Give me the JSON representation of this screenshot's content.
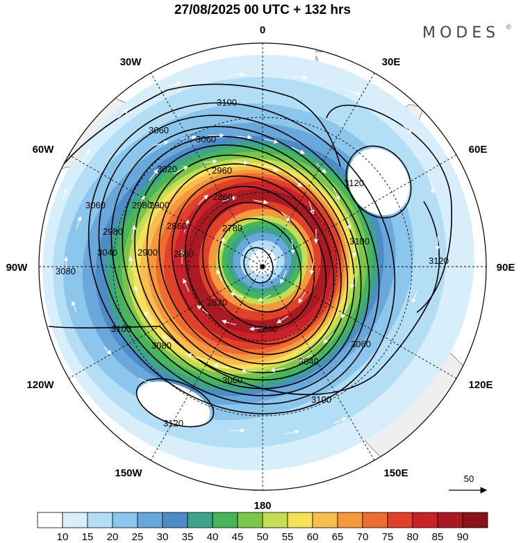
{
  "title": "27/08/2025  00 UTC  + 132 hrs",
  "brand": "MODES",
  "brand_mark": "©",
  "longitude_labels": {
    "lon_0": "0",
    "lon_30e": "30E",
    "lon_60e": "60E",
    "lon_90e": "90E",
    "lon_120e": "120E",
    "lon_150e": "150E",
    "lon_180": "180",
    "lon_150w": "150W",
    "lon_120w": "120W",
    "lon_90w": "90W",
    "lon_60w": "60W",
    "lon_30w": "30W"
  },
  "contour_labels": {
    "c1": "3100",
    "c2": "3080",
    "c3": "3060",
    "c4": "3060",
    "c5": "3020",
    "c6": "2980",
    "c7": "2900",
    "c8": "2860",
    "c9": "3120",
    "c10": "3060",
    "c11": "2980",
    "c12": "2860",
    "c13": "2780",
    "c14": "3100",
    "c15": "3040",
    "c16": "2900",
    "c17": "2860",
    "c18": "3120",
    "c19": "3080",
    "c20": "2820",
    "c21": "2840",
    "c22": "3100",
    "c23": "3080",
    "c24": "3040",
    "c25": "3060",
    "c26": "3060",
    "c27": "3100",
    "c28": "3120",
    "c29": "2960"
  },
  "wind_reference": "50",
  "colorbar": {
    "labels": [
      "10",
      "15",
      "20",
      "25",
      "30",
      "35",
      "40",
      "45",
      "50",
      "55",
      "60",
      "65",
      "70",
      "75",
      "80",
      "85",
      "90"
    ],
    "colors": [
      "#ffffff",
      "#d8eefb",
      "#b4def6",
      "#8dc6ec",
      "#6aa8dc",
      "#4e8cc8",
      "#3fa38a",
      "#48b55a",
      "#7cc54e",
      "#c5dd52",
      "#f6e25a",
      "#f7bd4e",
      "#f5983e",
      "#ee6d33",
      "#e0412b",
      "#c92228",
      "#a91a22",
      "#8a121a"
    ]
  }
}
